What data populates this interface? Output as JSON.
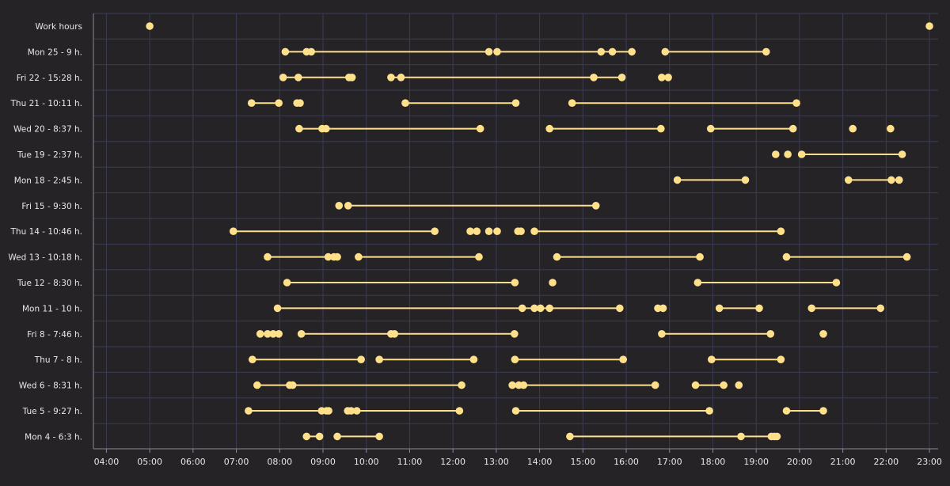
{
  "colors": {
    "background": "#262327",
    "grid": "#3b3c55",
    "mark": "#ffe08a",
    "text": "#e9e6ea"
  },
  "chart_data": {
    "type": "timeline",
    "title": "",
    "xlabel": "",
    "ylabel": "",
    "x_unit": "hour of day",
    "xlim": [
      3.7,
      23.2
    ],
    "x_ticks": [
      "04:00",
      "05:00",
      "06:00",
      "07:00",
      "08:00",
      "09:00",
      "10:00",
      "11:00",
      "12:00",
      "13:00",
      "14:00",
      "15:00",
      "16:00",
      "17:00",
      "18:00",
      "19:00",
      "20:00",
      "21:00",
      "22:00",
      "23:00"
    ],
    "rows": [
      {
        "label": "Work hours",
        "points": [
          5.0,
          23.0
        ],
        "segments": []
      },
      {
        "label": "Mon 25 - 9 h.",
        "points": [
          8.13,
          8.62,
          8.73,
          12.83,
          13.02,
          15.42,
          15.68,
          16.13,
          16.9,
          19.23
        ],
        "segments": [
          [
            8.13,
            12.83
          ],
          [
            13.02,
            16.13
          ],
          [
            16.9,
            19.23
          ]
        ]
      },
      {
        "label": "Fri 22 - 15:28 h.",
        "points": [
          8.08,
          8.43,
          9.6,
          9.67,
          10.57,
          10.8,
          15.25,
          15.9,
          16.82,
          16.97
        ],
        "segments": [
          [
            8.08,
            9.67
          ],
          [
            10.57,
            15.9
          ]
        ]
      },
      {
        "label": "Thu 21 - 10:11 h.",
        "points": [
          7.35,
          7.98,
          8.4,
          8.47,
          10.9,
          13.45,
          14.75,
          19.93
        ],
        "segments": [
          [
            7.35,
            7.98
          ],
          [
            10.9,
            13.45
          ],
          [
            14.75,
            19.93
          ]
        ]
      },
      {
        "label": "Wed 20 - 8:37 h.",
        "points": [
          8.45,
          8.98,
          9.07,
          12.63,
          14.23,
          16.8,
          17.95,
          19.85,
          21.23,
          22.1
        ],
        "segments": [
          [
            8.45,
            12.63
          ],
          [
            14.23,
            16.8
          ],
          [
            17.95,
            19.85
          ]
        ]
      },
      {
        "label": "Tue 19 - 2:37 h.",
        "points": [
          19.45,
          19.73,
          20.05,
          22.37
        ],
        "segments": [
          [
            20.05,
            22.37
          ]
        ]
      },
      {
        "label": "Mon 18 - 2:45 h.",
        "points": [
          17.18,
          18.75,
          21.13,
          22.12,
          22.3
        ],
        "segments": [
          [
            17.18,
            18.75
          ],
          [
            21.13,
            22.3
          ]
        ]
      },
      {
        "label": "Fri 15 - 9:30 h.",
        "points": [
          9.37,
          9.58,
          15.3
        ],
        "segments": [
          [
            9.58,
            15.3
          ]
        ]
      },
      {
        "label": "Thu 14 - 10:46 h.",
        "points": [
          6.93,
          11.58,
          12.4,
          12.55,
          12.83,
          13.02,
          13.5,
          13.57,
          13.88,
          19.57
        ],
        "segments": [
          [
            6.93,
            11.58
          ],
          [
            13.88,
            19.57
          ]
        ]
      },
      {
        "label": "Wed 13 - 10:18 h.",
        "points": [
          7.72,
          9.12,
          9.25,
          9.33,
          9.82,
          12.6,
          14.4,
          17.7,
          19.7,
          22.48
        ],
        "segments": [
          [
            7.72,
            9.33
          ],
          [
            9.82,
            12.6
          ],
          [
            14.4,
            17.7
          ],
          [
            19.7,
            22.48
          ]
        ]
      },
      {
        "label": "Tue 12 - 8:30 h.",
        "points": [
          8.17,
          13.43,
          14.3,
          17.65,
          20.85
        ],
        "segments": [
          [
            8.17,
            13.43
          ],
          [
            17.65,
            20.85
          ]
        ]
      },
      {
        "label": "Mon 11 - 10 h.",
        "points": [
          7.95,
          13.6,
          13.88,
          14.02,
          14.23,
          15.85,
          16.73,
          16.85,
          18.15,
          19.07,
          20.28,
          21.87
        ],
        "segments": [
          [
            7.95,
            15.85
          ],
          [
            18.15,
            19.07
          ],
          [
            20.28,
            21.87
          ]
        ]
      },
      {
        "label": "Fri 8 - 7:46 h.",
        "points": [
          7.55,
          7.72,
          7.85,
          7.98,
          8.5,
          10.57,
          10.65,
          13.42,
          16.82,
          19.33,
          20.55
        ],
        "segments": [
          [
            7.55,
            7.98
          ],
          [
            8.5,
            13.42
          ],
          [
            16.82,
            19.33
          ]
        ]
      },
      {
        "label": "Thu 7 - 8 h.",
        "points": [
          7.37,
          9.88,
          10.3,
          12.48,
          13.43,
          15.93,
          17.97,
          19.57
        ],
        "segments": [
          [
            7.37,
            9.88
          ],
          [
            10.3,
            12.48
          ],
          [
            13.43,
            15.93
          ],
          [
            17.97,
            19.57
          ]
        ]
      },
      {
        "label": "Wed 6 - 8:31 h.",
        "points": [
          7.48,
          8.23,
          8.3,
          12.2,
          13.37,
          13.52,
          13.63,
          16.67,
          17.6,
          18.25,
          18.6
        ],
        "segments": [
          [
            7.48,
            12.2
          ],
          [
            13.63,
            16.67
          ],
          [
            17.6,
            18.25
          ]
        ]
      },
      {
        "label": "Tue 5 - 9:27 h.",
        "points": [
          7.28,
          8.97,
          9.08,
          9.13,
          9.57,
          9.65,
          9.78,
          12.15,
          13.45,
          17.92,
          19.7,
          20.55
        ],
        "segments": [
          [
            7.28,
            9.13
          ],
          [
            9.57,
            12.15
          ],
          [
            13.45,
            17.92
          ],
          [
            19.7,
            20.55
          ]
        ]
      },
      {
        "label": "Mon 4 - 6:3 h.",
        "points": [
          8.62,
          8.92,
          9.33,
          10.3,
          14.7,
          18.65,
          19.35,
          19.42,
          19.48
        ],
        "segments": [
          [
            8.62,
            8.92
          ],
          [
            9.33,
            10.3
          ],
          [
            14.7,
            19.48
          ]
        ]
      }
    ]
  }
}
